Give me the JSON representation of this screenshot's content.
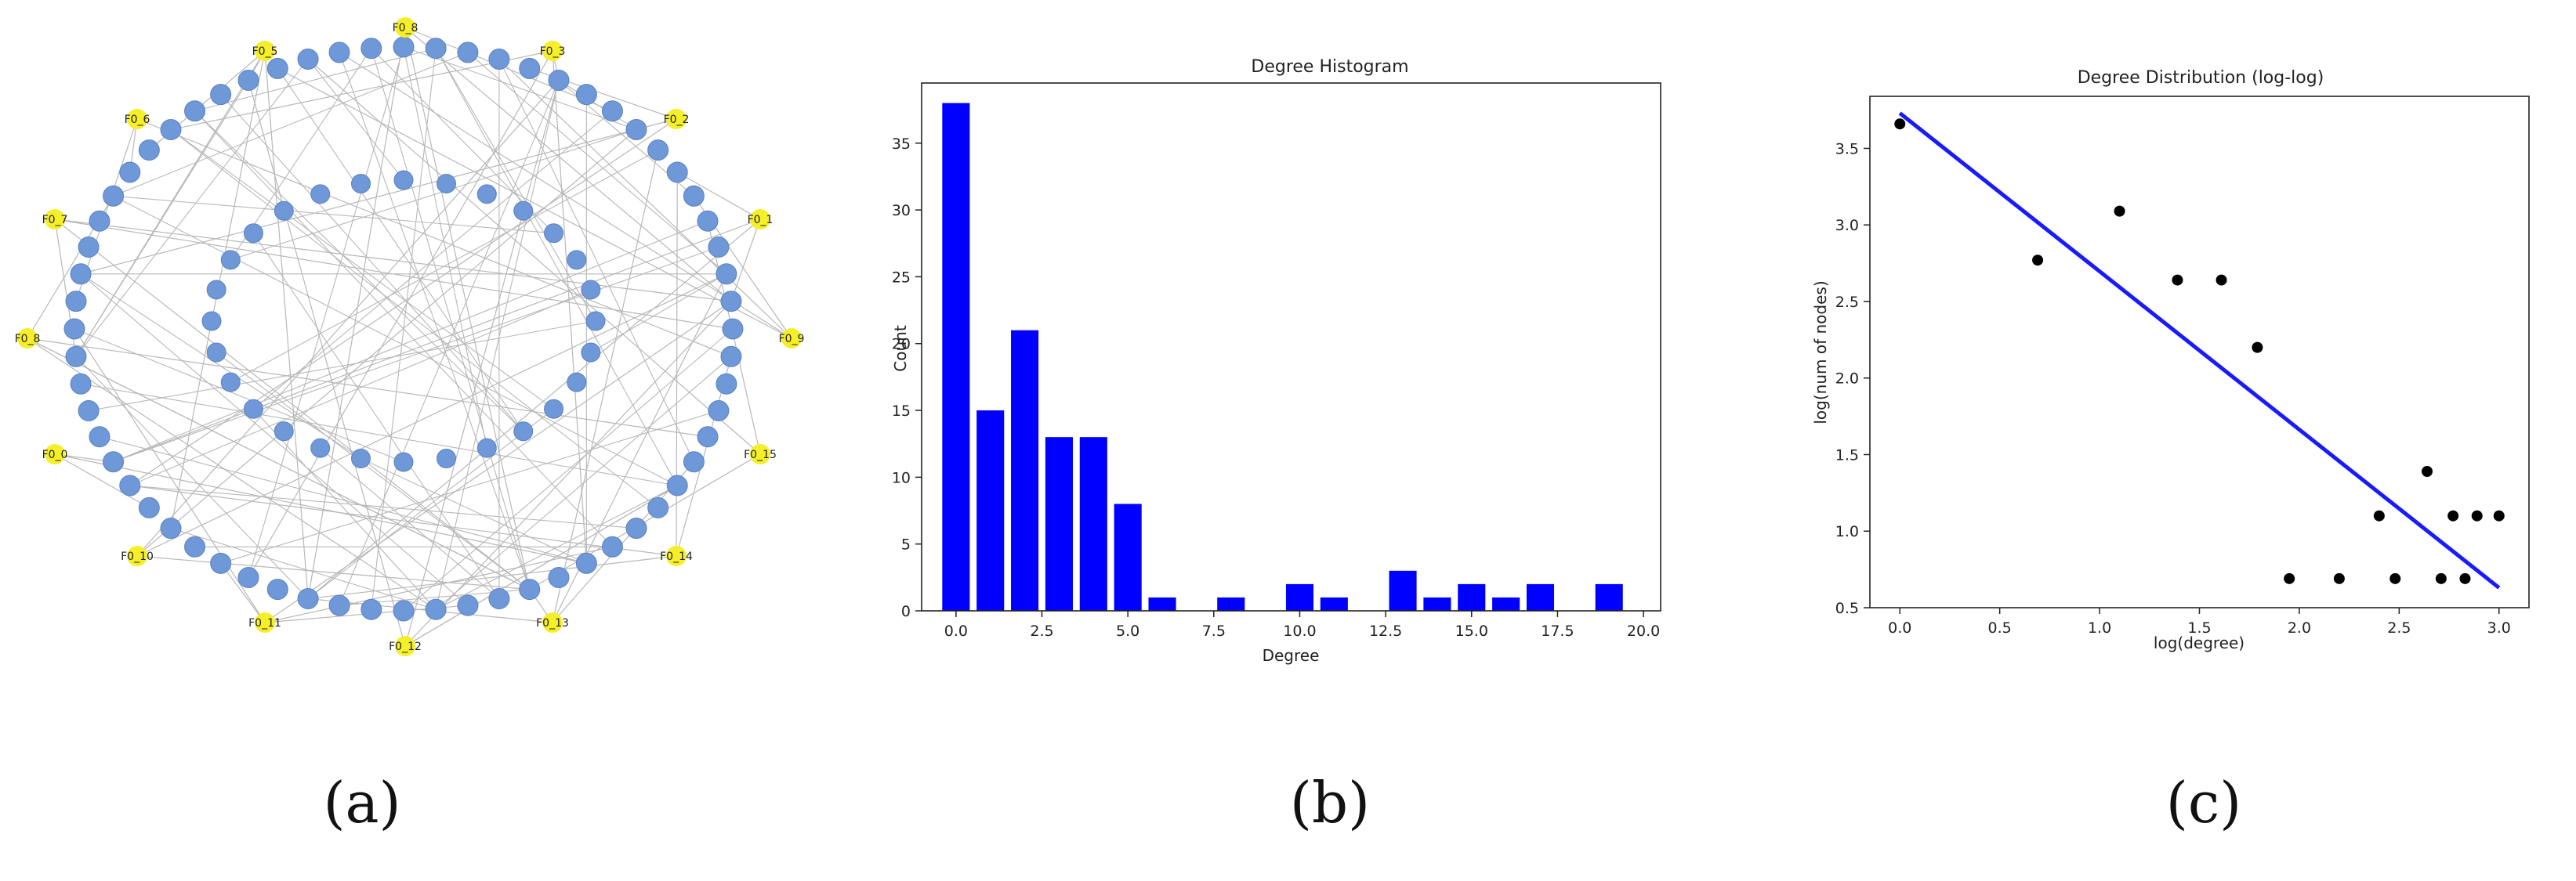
{
  "captions": {
    "a": "(a)",
    "b": "(b)",
    "c": "(c)"
  },
  "network": {
    "outer_nodes": [
      "F0_8",
      "F0_3",
      "F0_2",
      "F0_1",
      "F0_9",
      "F0_15",
      "F0_14",
      "F0_13",
      "F0_12",
      "F0_11",
      "F0_10",
      "F0_0",
      "F0_8",
      "F0_7",
      "F0_6",
      "F0_5"
    ],
    "node_colors": {
      "feature": "#f5ef2a",
      "chemical": "#6f98d8",
      "edge": "#b8b8b8"
    },
    "middle_ring_count": 64,
    "inner_ring_count": 28
  },
  "chart_data": [
    {
      "type": "bar",
      "title": "Degree Histogram",
      "xlabel": "Degree",
      "ylabel": "Count",
      "x": [
        0,
        1,
        2,
        3,
        4,
        5,
        6,
        8,
        10,
        11,
        13,
        14,
        15,
        16,
        17,
        19
      ],
      "values": [
        38,
        15,
        21,
        13,
        13,
        8,
        1,
        1,
        2,
        1,
        3,
        1,
        2,
        1,
        2,
        2
      ],
      "xlim": [
        -1,
        20.5
      ],
      "ylim": [
        0,
        39.5
      ],
      "xticks": [
        0.0,
        2.5,
        5.0,
        7.5,
        10.0,
        12.5,
        15.0,
        17.5,
        20.0
      ],
      "xtick_labels": [
        "0.0",
        "2.5",
        "5.0",
        "7.5",
        "10.0",
        "12.5",
        "15.0",
        "17.5",
        "20.0"
      ],
      "yticks": [
        0,
        5,
        10,
        15,
        20,
        25,
        30,
        35
      ],
      "ytick_labels": [
        "0",
        "5",
        "10",
        "15",
        "20",
        "25",
        "30",
        "35"
      ],
      "bar_color": "#0000ff",
      "grid": false
    },
    {
      "type": "scatter",
      "title": "Degree Distribution (log-log)",
      "xlabel": "log(degree)",
      "ylabel": "log(num of nodes)",
      "points": [
        {
          "x": 0.0,
          "y": 3.66
        },
        {
          "x": 0.69,
          "y": 2.77
        },
        {
          "x": 1.1,
          "y": 3.09
        },
        {
          "x": 1.39,
          "y": 2.64
        },
        {
          "x": 1.61,
          "y": 2.64
        },
        {
          "x": 1.79,
          "y": 2.2
        },
        {
          "x": 1.95,
          "y": 0.69
        },
        {
          "x": 2.2,
          "y": 0.69
        },
        {
          "x": 2.4,
          "y": 1.1
        },
        {
          "x": 2.48,
          "y": 0.69
        },
        {
          "x": 2.64,
          "y": 1.39
        },
        {
          "x": 2.71,
          "y": 0.69
        },
        {
          "x": 2.77,
          "y": 1.1
        },
        {
          "x": 2.83,
          "y": 0.69
        },
        {
          "x": 2.89,
          "y": 1.1
        },
        {
          "x": 3.0,
          "y": 1.1
        }
      ],
      "fit_line": {
        "x": [
          0.0,
          3.0
        ],
        "y": [
          3.73,
          0.63
        ]
      },
      "xlim": [
        -0.15,
        3.15
      ],
      "ylim": [
        0.5,
        3.84
      ],
      "xticks": [
        0.0,
        0.5,
        1.0,
        1.5,
        2.0,
        2.5,
        3.0
      ],
      "xtick_labels": [
        "0.0",
        "0.5",
        "1.0",
        "1.5",
        "2.0",
        "2.5",
        "3.0"
      ],
      "yticks": [
        0.5,
        1.0,
        1.5,
        2.0,
        2.5,
        3.0,
        3.5
      ],
      "ytick_labels": [
        "0.5",
        "1.0",
        "1.5",
        "2.0",
        "2.5",
        "3.0",
        "3.5"
      ],
      "point_color": "#000000",
      "line_color": "#1a1aff",
      "grid": false
    }
  ]
}
